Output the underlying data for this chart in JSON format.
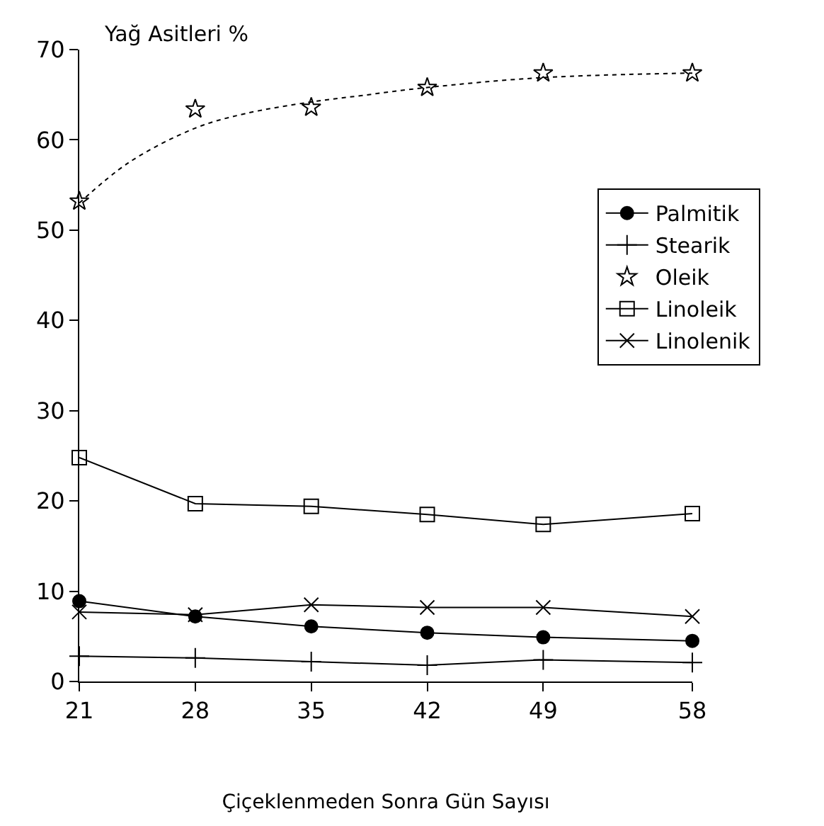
{
  "chart_data": {
    "type": "line",
    "xlabel": "Çiçeklenmeden Sonra Gün Sayısı",
    "ylabel": "Yağ Asitleri %",
    "x": [
      21,
      28,
      35,
      42,
      49,
      58
    ],
    "xlim": [
      21,
      58
    ],
    "xticks": [
      21,
      28,
      35,
      42,
      49,
      58
    ],
    "ylim": [
      0,
      70
    ],
    "yticks": [
      0,
      10,
      20,
      30,
      40,
      50,
      60,
      70
    ],
    "legend": "right",
    "series": [
      {
        "name": "Palmitik",
        "color": "#000000",
        "marker": "circle",
        "line_style": "solid",
        "values": [
          8.9,
          7.2,
          6.1,
          5.4,
          4.9,
          4.5
        ]
      },
      {
        "name": "Stearik",
        "color": "#000000",
        "marker": "cross",
        "line_style": "solid",
        "values": [
          2.8,
          2.6,
          2.2,
          1.8,
          2.4,
          2.1
        ]
      },
      {
        "name": "Oleik",
        "type": "scatter",
        "color": "#000000",
        "marker": "star",
        "values": [
          53.2,
          63.4,
          63.6,
          65.8,
          67.4,
          67.4
        ]
      },
      {
        "name": "Linoleik",
        "color": "#000000",
        "marker": "square",
        "line_style": "solid",
        "values": [
          24.8,
          19.7,
          19.4,
          18.5,
          17.4,
          18.6
        ]
      },
      {
        "name": "Linolenik",
        "color": "#000000",
        "marker": "x",
        "line_style": "solid",
        "values": [
          7.7,
          7.4,
          8.5,
          8.2,
          8.2,
          7.2
        ]
      },
      {
        "type": "line",
        "color": "#000000",
        "marker": "none",
        "line_style": "dotted",
        "x": [
          21,
          24,
          28,
          31,
          35,
          38,
          42,
          49,
          58
        ],
        "values": [
          53.0,
          57.5,
          61.3,
          62.9,
          64.2,
          64.9,
          65.8,
          66.9,
          67.4
        ]
      }
    ]
  }
}
